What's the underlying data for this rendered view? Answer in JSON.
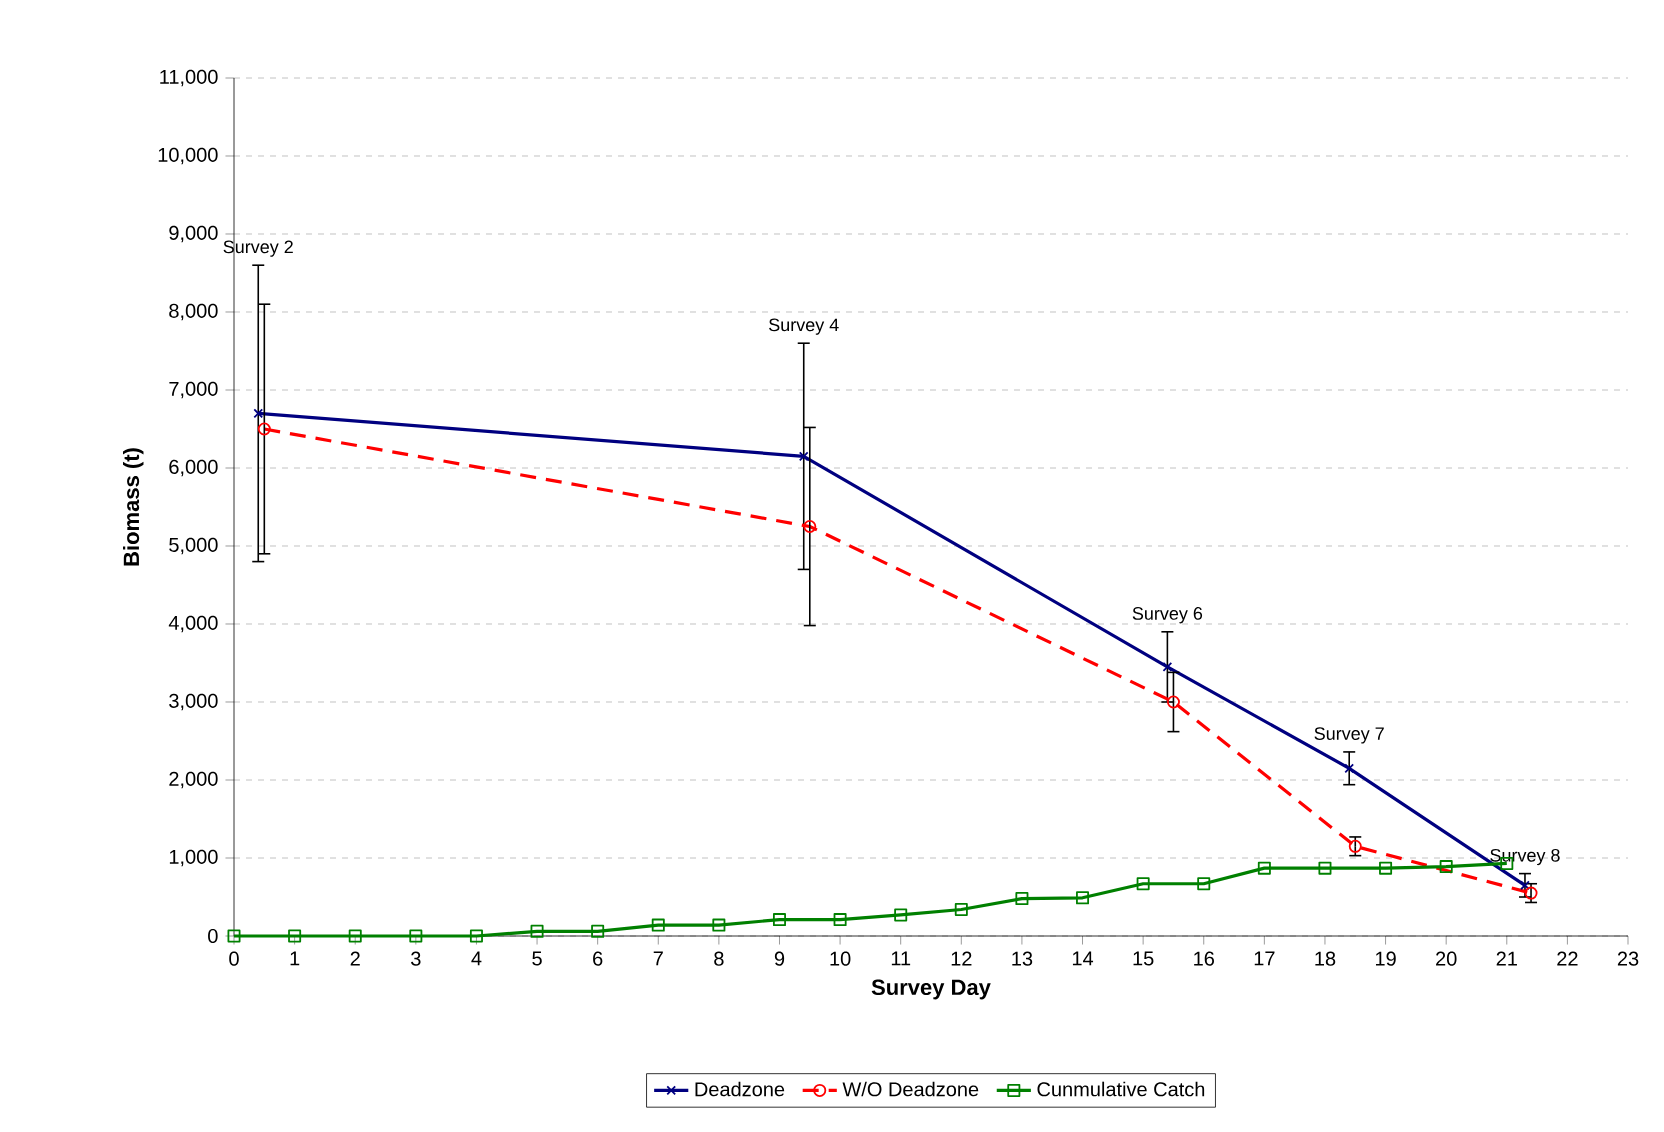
{
  "chart_data": {
    "type": "line",
    "xlabel": "Survey Day",
    "ylabel": "Biomass (t)",
    "xlim": [
      0,
      23
    ],
    "xticks": [
      0,
      1,
      2,
      3,
      4,
      5,
      6,
      7,
      8,
      9,
      10,
      11,
      12,
      13,
      14,
      15,
      16,
      17,
      18,
      19,
      20,
      21,
      22,
      23
    ],
    "ylim": [
      0,
      11000
    ],
    "yticks": [
      {
        "value": 0,
        "label": "0"
      },
      {
        "value": 1000,
        "label": "1,000"
      },
      {
        "value": 2000,
        "label": "2,000"
      },
      {
        "value": 3000,
        "label": "3,000"
      },
      {
        "value": 4000,
        "label": "4,000"
      },
      {
        "value": 5000,
        "label": "5,000"
      },
      {
        "value": 6000,
        "label": "6,000"
      },
      {
        "value": 7000,
        "label": "7,000"
      },
      {
        "value": 8000,
        "label": "8,000"
      },
      {
        "value": 9000,
        "label": "9,000"
      },
      {
        "value": 10000,
        "label": "10,000"
      },
      {
        "value": 11000,
        "label": "11,000"
      }
    ],
    "grid": "y",
    "legend": "bottom",
    "series": [
      {
        "name": "Deadzone",
        "color": "#000080",
        "marker": "cross",
        "line_style": "solid",
        "x": [
          0.4,
          9.4,
          15.4,
          18.4,
          21.3
        ],
        "values": [
          6700,
          6150,
          3450,
          2150,
          650
        ],
        "errors": [
          1900,
          1450,
          450,
          210,
          150
        ]
      },
      {
        "name": "W/O Deadzone",
        "color": "#ff0000",
        "marker": "circle",
        "line_style": "dashed",
        "x": [
          0.5,
          9.5,
          15.5,
          18.5,
          21.4
        ],
        "values": [
          6500,
          5250,
          3000,
          1150,
          550
        ],
        "errors": [
          1600,
          1270,
          380,
          120,
          120
        ]
      },
      {
        "name": "Cunmulative Catch",
        "color": "#008000",
        "marker": "square",
        "line_style": "solid",
        "x": [
          0,
          1,
          2,
          3,
          4,
          5,
          6,
          7,
          8,
          9,
          10,
          11,
          12,
          13,
          14,
          15,
          16,
          17,
          18,
          19,
          20,
          21
        ],
        "values": [
          0,
          0,
          0,
          0,
          0,
          60,
          60,
          140,
          140,
          210,
          210,
          270,
          340,
          480,
          490,
          670,
          670,
          870,
          870,
          870,
          890,
          930
        ]
      }
    ],
    "annotations": [
      "Survey 2",
      "Survey 4",
      "Survey 6",
      "Survey 7",
      "Survey 8"
    ]
  }
}
